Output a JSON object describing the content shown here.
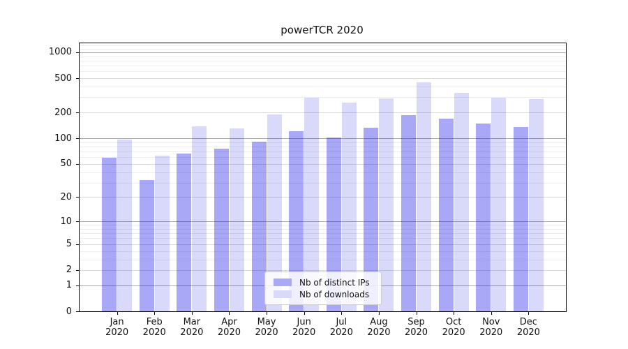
{
  "figure": {
    "background": "#ffffff"
  },
  "chart_data": {
    "type": "bar",
    "title": "powerTCR 2020",
    "categories": [
      "Jan 2020",
      "Feb 2020",
      "Mar 2020",
      "Apr 2020",
      "May 2020",
      "Jun 2020",
      "Jul 2020",
      "Aug 2020",
      "Sep 2020",
      "Oct 2020",
      "Nov 2020",
      "Dec 2020"
    ],
    "months": [
      "Jan",
      "Feb",
      "Mar",
      "Apr",
      "May",
      "Jun",
      "Jul",
      "Aug",
      "Sep",
      "Oct",
      "Nov",
      "Dec"
    ],
    "year_label": "2020",
    "series": [
      {
        "name": "Nb of distinct IPs",
        "legend_color": "#a9a9f6",
        "fill": "rgba(0,0,228,0.34)",
        "values": [
          59,
          32,
          66,
          76,
          91,
          120,
          102,
          133,
          185,
          169,
          149,
          136
        ]
      },
      {
        "name": "Nb of downloads",
        "legend_color": "#d9d9fa",
        "fill": "rgba(0,0,222,0.15)",
        "values": [
          96,
          63,
          138,
          130,
          191,
          296,
          259,
          292,
          451,
          337,
          295,
          288
        ]
      }
    ],
    "yscale": "log1p",
    "yticks": [
      0,
      1,
      2,
      5,
      10,
      20,
      50,
      100,
      200,
      500,
      1000
    ],
    "major_power_ticks": [
      1,
      10,
      100,
      1000
    ],
    "minor_yticks": [
      3,
      4,
      6,
      7,
      8,
      9,
      30,
      40,
      60,
      70,
      80,
      90,
      300,
      400,
      600,
      700,
      800,
      900,
      1100,
      1200
    ],
    "ylim": [
      0,
      1272
    ],
    "grid": true,
    "legend_position": "lower center",
    "xlabel": "",
    "ylabel": ""
  }
}
